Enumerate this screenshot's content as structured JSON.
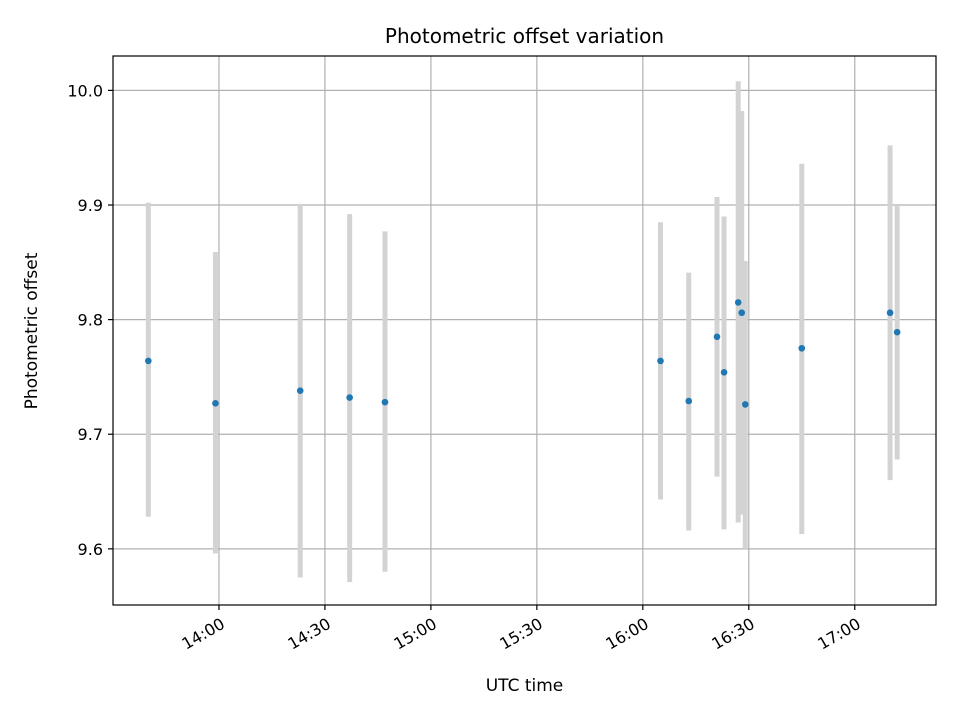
{
  "chart_data": {
    "type": "scatter",
    "title": "Photometric offset variation",
    "xlabel": "UTC time",
    "ylabel": "Photometric offset",
    "x_unit": "UTC time (HH:MM)",
    "xlim": [
      "13:30",
      "17:23"
    ],
    "ylim": [
      9.551,
      10.03
    ],
    "x_ticks": [
      "14:00",
      "14:30",
      "15:00",
      "15:30",
      "16:00",
      "16:30",
      "17:00"
    ],
    "y_ticks": [
      9.6,
      9.7,
      9.8,
      9.9,
      10.0
    ],
    "y_tick_labels": [
      "9.6",
      "9.7",
      "9.8",
      "9.9",
      "10.0"
    ],
    "grid": true,
    "colors": {
      "marker": "#1f77b4",
      "errorbar": "#d3d3d3",
      "grid": "#b0b0b0"
    },
    "points": [
      {
        "x": "13:40",
        "y": 9.764,
        "y_low": 9.628,
        "y_high": 9.902
      },
      {
        "x": "13:59",
        "y": 9.727,
        "y_low": 9.596,
        "y_high": 9.859
      },
      {
        "x": "14:23",
        "y": 9.738,
        "y_low": 9.575,
        "y_high": 9.901
      },
      {
        "x": "14:37",
        "y": 9.732,
        "y_low": 9.571,
        "y_high": 9.892
      },
      {
        "x": "14:47",
        "y": 9.728,
        "y_low": 9.58,
        "y_high": 9.877
      },
      {
        "x": "16:05",
        "y": 9.764,
        "y_low": 9.643,
        "y_high": 9.885
      },
      {
        "x": "16:13",
        "y": 9.729,
        "y_low": 9.616,
        "y_high": 9.841
      },
      {
        "x": "16:21",
        "y": 9.785,
        "y_low": 9.663,
        "y_high": 9.907
      },
      {
        "x": "16:23",
        "y": 9.754,
        "y_low": 9.617,
        "y_high": 9.89
      },
      {
        "x": "16:27",
        "y": 9.815,
        "y_low": 9.623,
        "y_high": 10.008
      },
      {
        "x": "16:28",
        "y": 9.806,
        "y_low": 9.63,
        "y_high": 9.982
      },
      {
        "x": "16:29",
        "y": 9.726,
        "y_low": 9.6,
        "y_high": 9.851
      },
      {
        "x": "16:45",
        "y": 9.775,
        "y_low": 9.613,
        "y_high": 9.936
      },
      {
        "x": "17:10",
        "y": 9.806,
        "y_low": 9.66,
        "y_high": 9.952
      },
      {
        "x": "17:12",
        "y": 9.789,
        "y_low": 9.678,
        "y_high": 9.899
      }
    ]
  }
}
